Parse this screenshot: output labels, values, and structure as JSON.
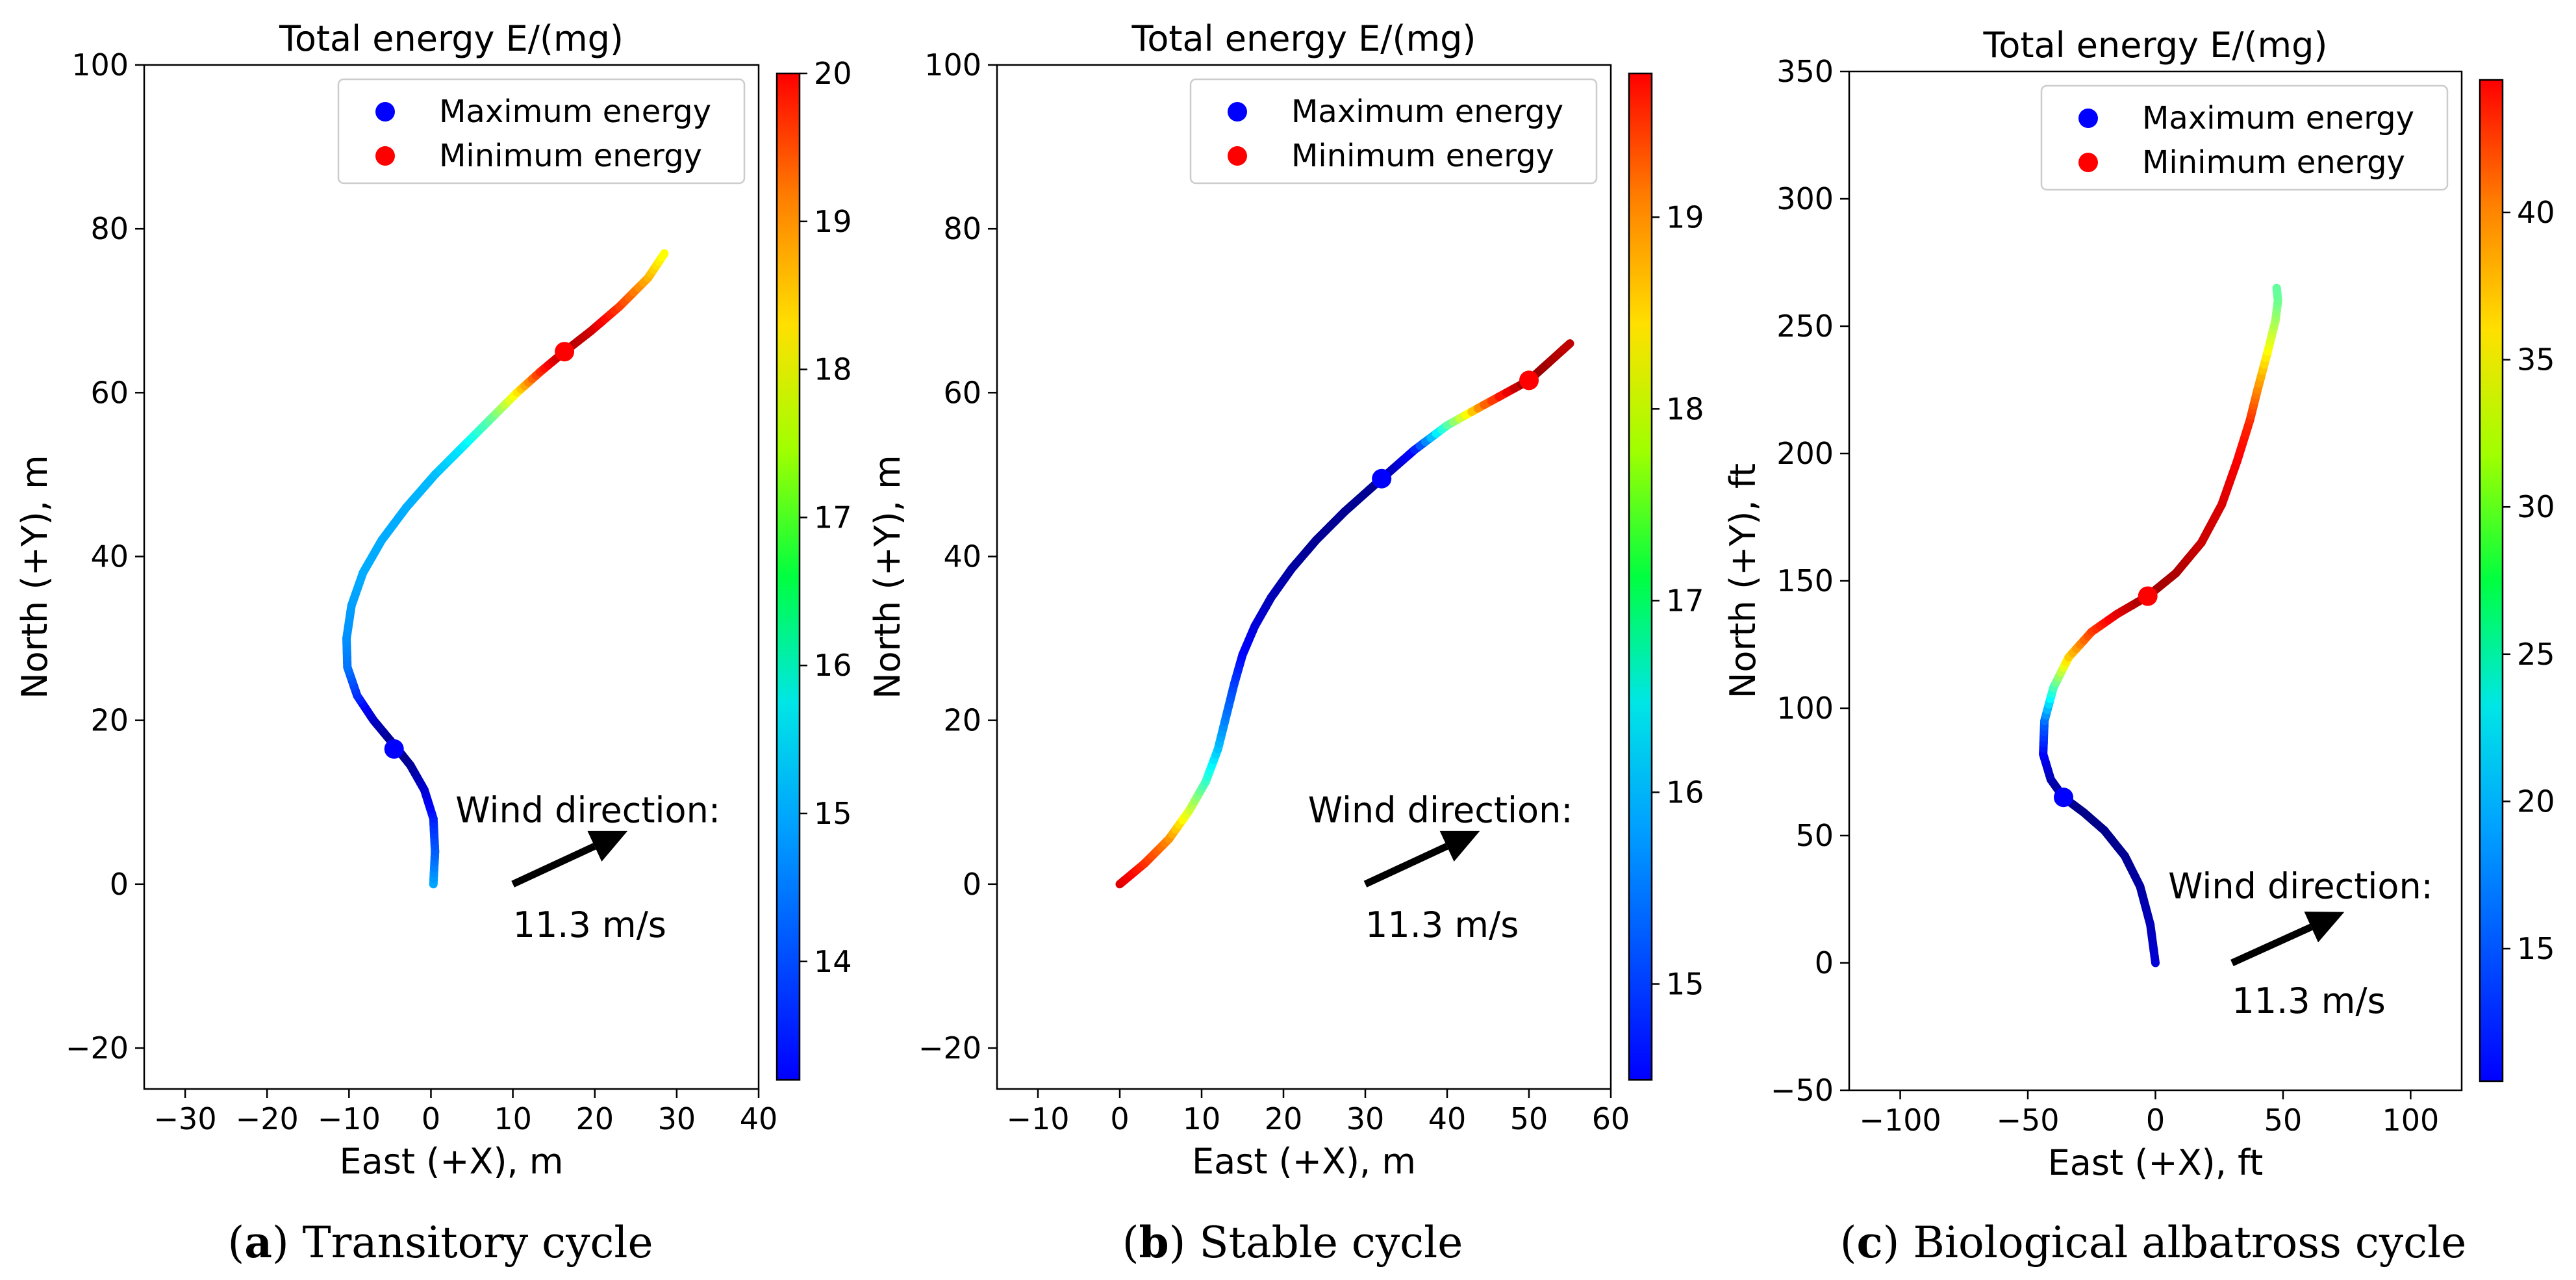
{
  "chart_data": [
    {
      "type": "line",
      "title": "Total energy E/(mg)",
      "xlabel": "East (+X), m",
      "ylabel": "North (+Y), m",
      "xlim": [
        -35,
        40
      ],
      "ylim": [
        -25,
        100
      ],
      "xticks": [
        -30,
        -20,
        -10,
        0,
        10,
        20,
        30,
        40
      ],
      "yticks": [
        -20,
        0,
        20,
        40,
        60,
        80,
        100
      ],
      "caption_letter": "a",
      "caption_text": "Transitory cycle",
      "colorbar": {
        "min": 13.2,
        "max": 20,
        "ticks": [
          14,
          15,
          16,
          17,
          18,
          19,
          20
        ]
      },
      "legend": {
        "position": "upper right",
        "entries": [
          "Maximum energy",
          "Minimum energy"
        ]
      },
      "wind": {
        "label": "Wind direction:",
        "speed": "11.3 m/s",
        "arrow_from": [
          10,
          0
        ],
        "arrow_to": [
          24,
          6.5
        ],
        "label_at": [
          3,
          9
        ],
        "speed_at": [
          10,
          -5
        ]
      },
      "series": [
        {
          "x": [
            0.3,
            0.5,
            0.3,
            -0.8,
            -2.5,
            -4.5,
            -7.0,
            -9.0,
            -10.2,
            -10.3,
            -9.7,
            -8.3,
            -6.0,
            -3.0,
            0.5,
            4.0,
            7.5,
            10.5,
            13.3,
            16.3,
            19.5,
            23.0,
            26.5,
            28.5
          ],
          "y": [
            0,
            4,
            8,
            11.5,
            14.5,
            17,
            20,
            23,
            26.5,
            30,
            34,
            38,
            42,
            46,
            50,
            53.5,
            57,
            60,
            62.5,
            65,
            67.5,
            70.5,
            74,
            77
          ],
          "e": [
            15.2,
            14.7,
            14.3,
            13.8,
            13.4,
            13.2,
            13.6,
            14.3,
            14.8,
            15.0,
            15.1,
            15.2,
            15.2,
            15.2,
            15.3,
            15.6,
            16.4,
            17.5,
            18.8,
            19.7,
            19.5,
            18.8,
            18.0,
            17.4
          ]
        }
      ],
      "markers": [
        {
          "name": "Maximum energy",
          "x": -4.5,
          "y": 16.5,
          "color": "#0000ff"
        },
        {
          "name": "Minimum energy",
          "x": 16.3,
          "y": 65,
          "color": "#ff0000"
        }
      ]
    },
    {
      "type": "line",
      "title": "Total energy E/(mg)",
      "xlabel": "East (+X), m",
      "ylabel": "North (+Y), m",
      "xlim": [
        -15,
        60
      ],
      "ylim": [
        -25,
        100
      ],
      "xticks": [
        -10,
        0,
        10,
        20,
        30,
        40,
        50,
        60
      ],
      "yticks": [
        -20,
        0,
        20,
        40,
        60,
        80,
        100
      ],
      "caption_letter": "b",
      "caption_text": "Stable cycle",
      "colorbar": {
        "min": 14.5,
        "max": 19.75,
        "ticks": [
          15,
          16,
          17,
          18,
          19
        ]
      },
      "legend": {
        "position": "upper right",
        "entries": [
          "Maximum energy",
          "Minimum energy"
        ]
      },
      "wind": {
        "label": "Wind direction:",
        "speed": "11.3 m/s",
        "arrow_from": [
          30,
          0
        ],
        "arrow_to": [
          44,
          6.5
        ],
        "label_at": [
          23,
          9
        ],
        "speed_at": [
          30,
          -5
        ]
      },
      "series": [
        {
          "x": [
            0,
            3,
            6,
            8.5,
            10.5,
            12,
            13,
            14,
            15,
            16.5,
            18.5,
            21,
            24,
            27.5,
            32,
            36,
            40,
            44.5,
            50,
            55
          ],
          "y": [
            0,
            2.5,
            5.5,
            9,
            12.5,
            16.5,
            20.5,
            24.5,
            28,
            31.5,
            35,
            38.5,
            42,
            45.5,
            49.5,
            53,
            56,
            58.5,
            61.5,
            66
          ],
          "e": [
            19.3,
            18.9,
            18.4,
            17.6,
            16.8,
            16.2,
            15.8,
            15.5,
            15.2,
            15.0,
            14.8,
            14.7,
            14.6,
            14.6,
            14.6,
            15.2,
            16.8,
            18.5,
            19.7,
            19.4
          ]
        }
      ],
      "markers": [
        {
          "name": "Maximum energy",
          "x": 32,
          "y": 49.5,
          "color": "#0000ff"
        },
        {
          "name": "Minimum energy",
          "x": 50,
          "y": 61.5,
          "color": "#ff0000"
        }
      ]
    },
    {
      "type": "line",
      "title": "Total energy E/(mg)",
      "xlabel": "East (+X), ft",
      "ylabel": "North (+Y), ft",
      "xlim": [
        -120,
        120
      ],
      "ylim": [
        -50,
        350
      ],
      "xticks": [
        -100,
        -50,
        0,
        50,
        100
      ],
      "yticks": [
        -50,
        0,
        50,
        100,
        150,
        200,
        250,
        300,
        350
      ],
      "caption_letter": "c",
      "caption_text": "Biological albatross cycle",
      "colorbar": {
        "min": 10.5,
        "max": 44.5,
        "ticks": [
          15,
          20,
          25,
          30,
          35,
          40
        ]
      },
      "legend": {
        "position": "upper right",
        "entries": [
          "Maximum energy",
          "Minimum energy"
        ]
      },
      "wind": {
        "label": "Wind direction:",
        "speed": "11.3 m/s",
        "arrow_from": [
          30,
          0
        ],
        "arrow_to": [
          74,
          20
        ],
        "label_at": [
          5,
          30
        ],
        "speed_at": [
          30,
          -15
        ]
      },
      "series": [
        {
          "x": [
            0,
            -2,
            -6,
            -12,
            -20,
            -28,
            -36,
            -41,
            -44,
            -43.5,
            -40,
            -34,
            -25,
            -15,
            -3,
            8,
            18,
            26,
            32,
            37,
            40,
            44,
            47,
            48,
            47.5
          ],
          "y": [
            0,
            15,
            30,
            42,
            52,
            59,
            65,
            72,
            82,
            95,
            108,
            120,
            130,
            137,
            144,
            153,
            165,
            180,
            197,
            213,
            225,
            240,
            252,
            260,
            265
          ],
          "e": [
            13.5,
            12.5,
            11.8,
            11.2,
            10.9,
            10.8,
            11.0,
            12.0,
            14.5,
            18.0,
            25.0,
            33.0,
            38.0,
            41.0,
            43.5,
            43.0,
            42.0,
            41.5,
            40.5,
            39.0,
            36.0,
            32.0,
            29.0,
            27.0,
            26.5
          ]
        }
      ],
      "markers": [
        {
          "name": "Maximum energy",
          "x": -36,
          "y": 65,
          "color": "#0000ff"
        },
        {
          "name": "Minimum energy",
          "x": -3,
          "y": 144,
          "color": "#ff0000"
        }
      ]
    }
  ]
}
